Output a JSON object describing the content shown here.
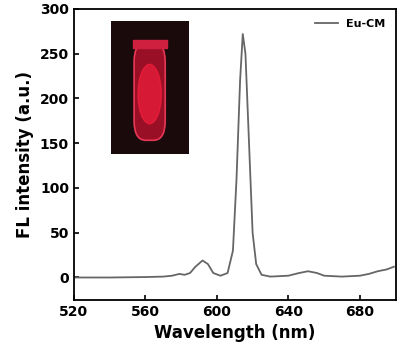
{
  "chart_data": {
    "type": "line",
    "x": [
      520,
      540,
      560,
      570,
      575,
      579,
      582,
      585,
      588,
      592,
      595,
      598,
      602,
      606,
      609,
      611,
      613,
      614.5,
      616,
      618,
      620,
      622,
      625,
      630,
      640,
      646,
      651,
      656,
      660,
      670,
      680,
      685,
      690,
      695,
      699
    ],
    "series": [
      {
        "name": "Eu-CM",
        "color": "#666666",
        "values": [
          0,
          0,
          0.5,
          1,
          2,
          4,
          3,
          5,
          12,
          19,
          15,
          5,
          2,
          5,
          30,
          110,
          220,
          272,
          250,
          150,
          50,
          15,
          3,
          1,
          2,
          5,
          7,
          5,
          2,
          1,
          2,
          4,
          7,
          9,
          12
        ]
      }
    ],
    "x_label": "Wavelength (nm)",
    "y_label": "FL intensity (a.u.)",
    "xlim": [
      520,
      700
    ],
    "xticks": [
      520,
      560,
      600,
      640,
      680
    ],
    "ylim": [
      -25,
      300
    ],
    "yticks": [
      0,
      50,
      100,
      150,
      200,
      250,
      300
    ],
    "legend": "upper right",
    "grid": false
  }
}
